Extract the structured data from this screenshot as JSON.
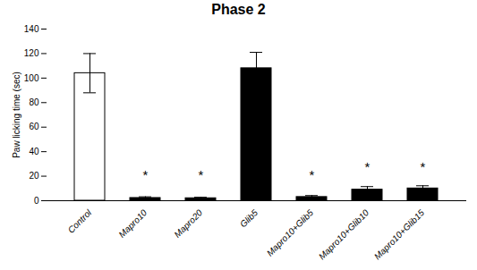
{
  "chart_data": {
    "type": "bar",
    "title": "Phase 2",
    "ylabel": "Paw licking time (sec)",
    "categories": [
      "Control",
      "Mapro10",
      "Mapro20",
      "Glib5",
      "Mapro10+Glib5",
      "Mapro10+Glib10",
      "Mapro10+Glib15"
    ],
    "values": [
      104,
      2.2,
      2.0,
      108,
      3.0,
      9.0,
      10.0
    ],
    "errors": [
      16,
      1.0,
      0.8,
      13,
      1.2,
      2.5,
      2.2
    ],
    "colors": [
      "#ffffff",
      "#000000",
      "#000000",
      "#000000",
      "#000000",
      "#000000",
      "#000000"
    ],
    "ylim": [
      0,
      140
    ],
    "yticks": [
      0,
      20,
      40,
      60,
      80,
      100,
      120,
      140
    ],
    "grid": false,
    "annotations": [
      {
        "text": "*",
        "x": "Mapro10",
        "y": 17
      },
      {
        "text": "*",
        "x": "Mapro20",
        "y": 17
      },
      {
        "text": "*",
        "x": "Mapro10+Glib5",
        "y": 17
      },
      {
        "text": "*",
        "x": "Mapro10+Glib10",
        "y": 24
      },
      {
        "text": "*",
        "x": "Mapro10+Glib15",
        "y": 24
      }
    ]
  }
}
